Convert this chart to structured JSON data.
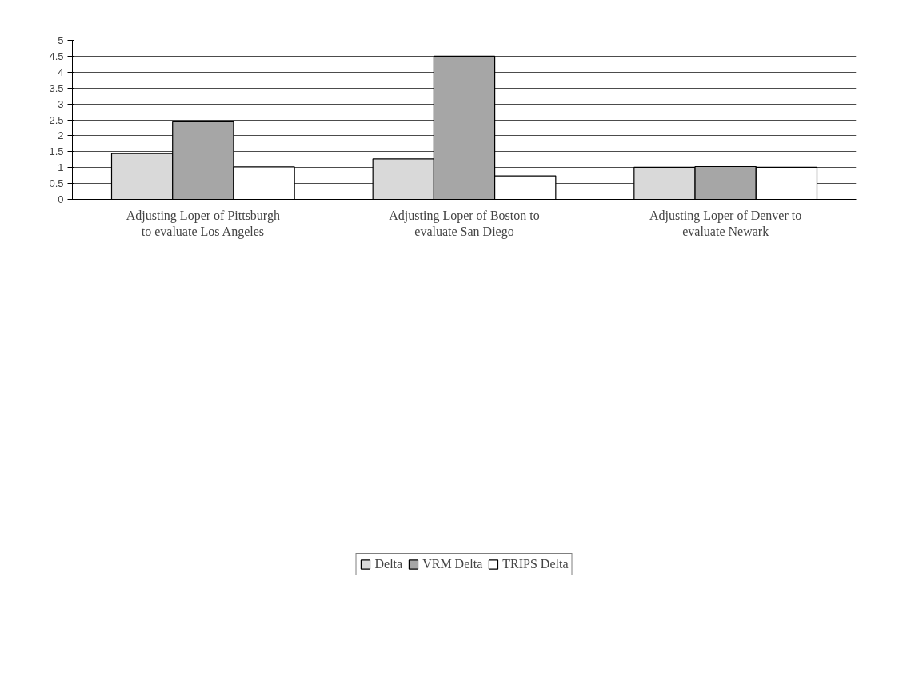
{
  "chart_data": {
    "type": "bar",
    "categories": [
      "Adjusting Loper of Pittsburgh to evaluate Los Angeles",
      "Adjusting Loper of Boston to evaluate San Diego",
      "Adjusting Loper of Denver to evaluate Newark"
    ],
    "series": [
      {
        "name": "Delta",
        "color": "#d9d9d9",
        "values": [
          1.44,
          1.27,
          1.01
        ]
      },
      {
        "name": "VRM Delta",
        "color": "#a6a6a6",
        "values": [
          2.44,
          4.5,
          1.03
        ]
      },
      {
        "name": "TRIPS Delta",
        "color": "#ffffff",
        "values": [
          1.02,
          0.74,
          1.01
        ]
      }
    ],
    "ylim": [
      0,
      5
    ],
    "yticks": [
      0,
      0.5,
      1,
      1.5,
      2,
      2.5,
      3,
      3.5,
      4,
      4.5,
      5
    ],
    "grid": "y",
    "legend": "bottom"
  }
}
